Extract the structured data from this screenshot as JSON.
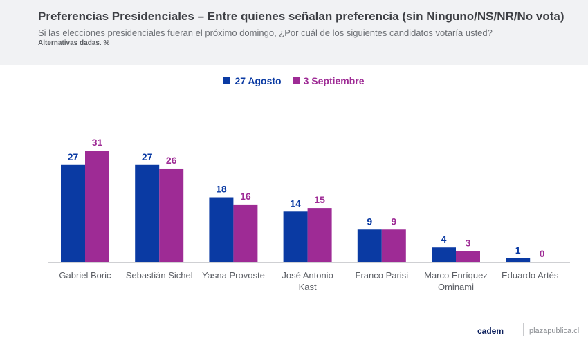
{
  "header": {
    "title": "Preferencias Presidenciales – Entre quienes señalan preferencia (sin Ninguno/NS/NR/No vota)",
    "subtitle": "Si las elecciones presidenciales fueran el próximo domingo, ¿Por cuál de los siguientes candidatos votaría usted?",
    "note": "Alternativas dadas. %"
  },
  "colors": {
    "series1": "#0a3aa3",
    "series2": "#9e2b95",
    "axis": "#cfd0d3",
    "category_label": "#5d6066"
  },
  "chart_data": {
    "type": "bar",
    "categories": [
      [
        "Gabriel Boric"
      ],
      [
        "Sebastián Sichel"
      ],
      [
        "Yasna Provoste"
      ],
      [
        "José Antonio",
        "Kast"
      ],
      [
        "Franco Parisi"
      ],
      [
        "Marco Enríquez",
        "Ominami"
      ],
      [
        "Eduardo Artés"
      ]
    ],
    "series": [
      {
        "name": "27 Agosto",
        "values": [
          27,
          27,
          18,
          14,
          9,
          4,
          1
        ]
      },
      {
        "name": "3 Septiembre",
        "values": [
          31,
          26,
          16,
          15,
          9,
          3,
          0
        ]
      }
    ],
    "ylim": [
      0,
      31
    ],
    "legend_position": "top-center",
    "grid": false
  },
  "footer": {
    "logo": "cadem",
    "site": "plazapublica.cl"
  }
}
